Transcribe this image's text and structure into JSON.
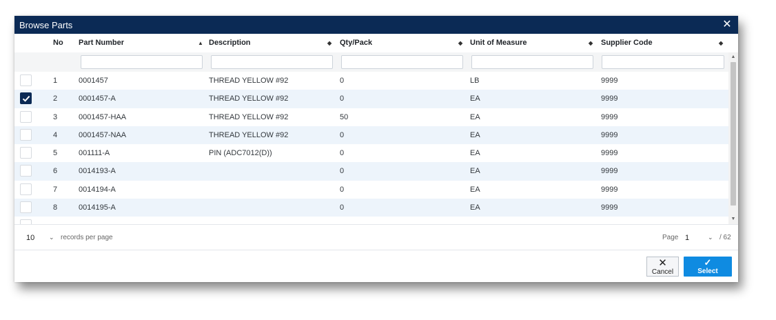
{
  "dialog": {
    "title": "Browse Parts"
  },
  "columns": [
    {
      "key": "no",
      "label": "No"
    },
    {
      "key": "part_number",
      "label": "Part Number"
    },
    {
      "key": "description",
      "label": "Description"
    },
    {
      "key": "qty_pack",
      "label": "Qty/Pack"
    },
    {
      "key": "uom",
      "label": "Unit of Measure"
    },
    {
      "key": "supplier_code",
      "label": "Supplier Code"
    }
  ],
  "sort": {
    "column": "part_number",
    "direction": "ascending"
  },
  "rows": [
    {
      "no": "1",
      "part_number": "0001457",
      "description": "THREAD YELLOW #92",
      "qty_pack": "0",
      "uom": "LB",
      "supplier_code": "9999",
      "checked": false
    },
    {
      "no": "2",
      "part_number": "0001457-A",
      "description": "THREAD YELLOW #92",
      "qty_pack": "0",
      "uom": "EA",
      "supplier_code": "9999",
      "checked": true
    },
    {
      "no": "3",
      "part_number": "0001457-HAA",
      "description": "THREAD YELLOW #92",
      "qty_pack": "50",
      "uom": "EA",
      "supplier_code": "9999",
      "checked": false
    },
    {
      "no": "4",
      "part_number": "0001457-NAA",
      "description": "THREAD YELLOW #92",
      "qty_pack": "0",
      "uom": "EA",
      "supplier_code": "9999",
      "checked": false
    },
    {
      "no": "5",
      "part_number": "001111-A",
      "description": "PIN (ADC7012(D))",
      "qty_pack": "0",
      "uom": "EA",
      "supplier_code": "9999",
      "checked": false
    },
    {
      "no": "6",
      "part_number": "0014193-A",
      "description": "",
      "qty_pack": "0",
      "uom": "EA",
      "supplier_code": "9999",
      "checked": false
    },
    {
      "no": "7",
      "part_number": "0014194-A",
      "description": "",
      "qty_pack": "0",
      "uom": "EA",
      "supplier_code": "9999",
      "checked": false
    },
    {
      "no": "8",
      "part_number": "0014195-A",
      "description": "",
      "qty_pack": "0",
      "uom": "EA",
      "supplier_code": "9999",
      "checked": false
    }
  ],
  "pager": {
    "per_page": "10",
    "per_page_label": "records per page",
    "page_label": "Page",
    "page": "1",
    "total_label": "/ 62"
  },
  "buttons": {
    "cancel": "Cancel",
    "select": "Select"
  },
  "icons": {
    "close": "close-icon",
    "check": "check-icon",
    "cancel": "x-icon",
    "select": "checkmark-icon"
  },
  "colors": {
    "titlebar": "#0b2a55",
    "row_alt": "#edf4fb",
    "select_button": "#0f8be1"
  }
}
